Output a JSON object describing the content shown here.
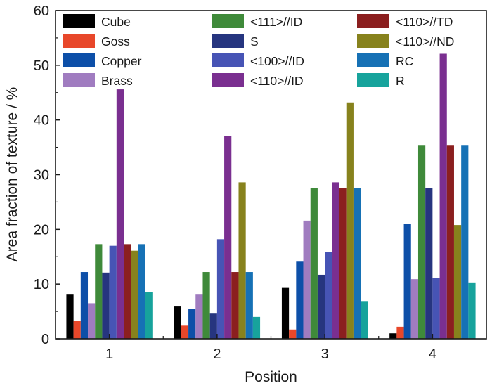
{
  "chart_data": {
    "type": "bar",
    "title": "",
    "xlabel": "Position",
    "ylabel": "Area fraction of texture / %",
    "ylim": [
      0,
      60
    ],
    "yticks": [
      "0",
      "10",
      "20",
      "30",
      "40",
      "50",
      "60"
    ],
    "categories": [
      "1",
      "2",
      "3",
      "4"
    ],
    "grid": false,
    "legend_position": "top",
    "series": [
      {
        "name": "Cube",
        "color": "#000000",
        "values": [
          8.2,
          5.9,
          9.3,
          1.0
        ]
      },
      {
        "name": "Goss",
        "color": "#e8472a",
        "values": [
          3.3,
          2.4,
          1.7,
          2.2
        ]
      },
      {
        "name": "Copper",
        "color": "#0d4fa8",
        "values": [
          12.2,
          5.4,
          14.1,
          21.0
        ]
      },
      {
        "name": "Brass",
        "color": "#a07cc0",
        "values": [
          6.5,
          8.2,
          21.6,
          10.9
        ]
      },
      {
        "name": "<111>//ID",
        "color": "#3f8a3a",
        "values": [
          17.3,
          12.2,
          27.5,
          35.3
        ]
      },
      {
        "name": "S",
        "color": "#26357f",
        "values": [
          12.1,
          4.6,
          11.7,
          27.5
        ]
      },
      {
        "name": "<100>//ID",
        "color": "#4754b5",
        "values": [
          17.0,
          18.2,
          15.9,
          11.1
        ]
      },
      {
        "name": "<110>//ID",
        "color": "#7a2f90",
        "values": [
          45.6,
          37.1,
          28.6,
          52.1
        ]
      },
      {
        "name": "<110>//TD",
        "color": "#8b1f1f",
        "values": [
          17.3,
          12.2,
          27.5,
          35.3
        ]
      },
      {
        "name": "<110>//ND",
        "color": "#87821d",
        "values": [
          16.1,
          28.6,
          43.2,
          20.8
        ]
      },
      {
        "name": "RC",
        "color": "#1671b5",
        "values": [
          17.3,
          12.2,
          27.5,
          35.3
        ]
      },
      {
        "name": "R",
        "color": "#17a39c",
        "values": [
          8.6,
          4.0,
          6.9,
          10.3
        ]
      }
    ]
  }
}
